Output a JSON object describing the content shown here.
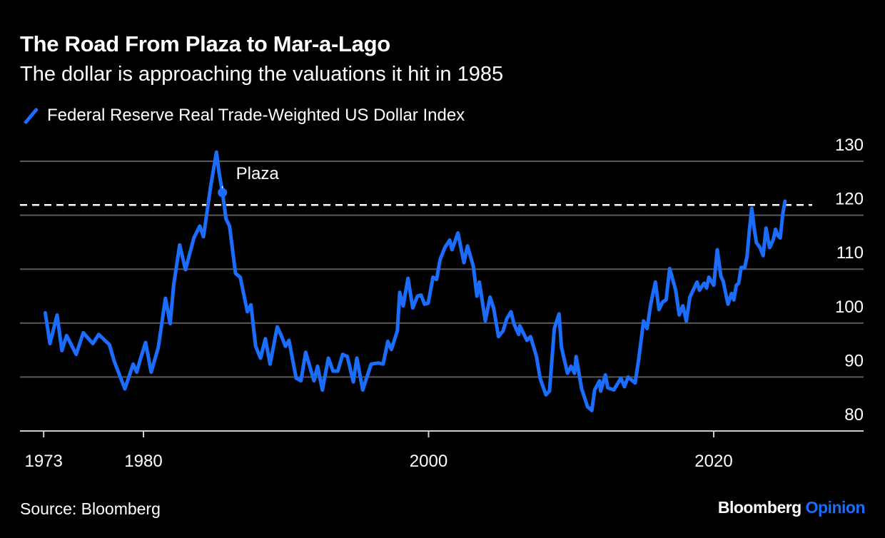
{
  "title": "The Road From Plaza to Mar-a-Lago",
  "subtitle": "The dollar is approaching the valuations it hit in 1985",
  "source": "Source: Bloomberg",
  "logo": {
    "brand": "Bloomberg",
    "section": "Opinion"
  },
  "colors": {
    "series": "#1a6dff",
    "background": "#000000",
    "grid": "#5a5a5a",
    "reference_line": "#ffffff",
    "logo_accent": "#1a6dff"
  },
  "legend_icon": "diagonal-line-swatch",
  "chart_data": {
    "type": "line",
    "title": "The Road From Plaza to Mar-a-Lago",
    "subtitle": "The dollar is approaching the valuations it hit in 1985",
    "xlabel": "",
    "ylabel": "",
    "xlim": [
      1973,
      2025
    ],
    "ylim": [
      80,
      130
    ],
    "y_axis_position": "right",
    "grid": true,
    "legend_placement": "top-left",
    "x_ticks": [
      "1973",
      "1980",
      "2000",
      "2020"
    ],
    "y_ticks": [
      "80",
      "90",
      "100",
      "110",
      "120",
      "130"
    ],
    "reference_line": {
      "y": 121.9,
      "style": "dashed"
    },
    "annotation": {
      "label": "Plaza",
      "x": 1985.54,
      "y": 124.2
    },
    "series": [
      {
        "name": "Federal Reserve Real Trade-Weighted US Dollar Index",
        "points": [
          [
            1973.11,
            101.9
          ],
          [
            1973.44,
            96.2
          ],
          [
            1973.94,
            101.5
          ],
          [
            1974.28,
            94.9
          ],
          [
            1974.61,
            97.7
          ],
          [
            1975.28,
            94.2
          ],
          [
            1975.78,
            98.2
          ],
          [
            1976.45,
            96.2
          ],
          [
            1976.86,
            97.9
          ],
          [
            1977.61,
            96.0
          ],
          [
            1977.95,
            92.9
          ],
          [
            1978.7,
            87.8
          ],
          [
            1979.28,
            92.4
          ],
          [
            1979.53,
            90.9
          ],
          [
            1979.78,
            93.3
          ],
          [
            1980.15,
            96.4
          ],
          [
            1980.54,
            90.9
          ],
          [
            1981.04,
            95.5
          ],
          [
            1981.54,
            104.6
          ],
          [
            1981.87,
            99.9
          ],
          [
            1982.12,
            107.0
          ],
          [
            1982.54,
            114.5
          ],
          [
            1982.95,
            109.9
          ],
          [
            1983.54,
            115.8
          ],
          [
            1983.95,
            118.0
          ],
          [
            1984.21,
            116.0
          ],
          [
            1984.71,
            125.3
          ],
          [
            1985.12,
            131.7
          ],
          [
            1985.29,
            128.1
          ],
          [
            1985.54,
            124.2
          ],
          [
            1985.79,
            119.3
          ],
          [
            1986.04,
            118.0
          ],
          [
            1986.46,
            109.2
          ],
          [
            1986.79,
            108.5
          ],
          [
            1987.29,
            102.1
          ],
          [
            1987.54,
            103.4
          ],
          [
            1987.87,
            95.7
          ],
          [
            1988.21,
            93.5
          ],
          [
            1988.55,
            97.1
          ],
          [
            1988.88,
            92.4
          ],
          [
            1989.38,
            99.3
          ],
          [
            1989.63,
            97.9
          ],
          [
            1989.96,
            95.7
          ],
          [
            1990.21,
            96.8
          ],
          [
            1990.71,
            89.8
          ],
          [
            1991.05,
            89.3
          ],
          [
            1991.38,
            94.6
          ],
          [
            1991.96,
            89.3
          ],
          [
            1992.21,
            92.0
          ],
          [
            1992.55,
            87.6
          ],
          [
            1992.97,
            93.5
          ],
          [
            1993.3,
            91.1
          ],
          [
            1993.63,
            91.1
          ],
          [
            1993.97,
            94.2
          ],
          [
            1994.3,
            93.8
          ],
          [
            1994.72,
            89.1
          ],
          [
            1994.97,
            93.5
          ],
          [
            1995.38,
            87.6
          ],
          [
            1995.97,
            92.4
          ],
          [
            1996.47,
            92.6
          ],
          [
            1996.81,
            92.4
          ],
          [
            1997.14,
            96.6
          ],
          [
            1997.39,
            95.1
          ],
          [
            1997.81,
            98.6
          ],
          [
            1997.97,
            105.7
          ],
          [
            1998.22,
            103.2
          ],
          [
            1998.56,
            108.3
          ],
          [
            1998.89,
            102.8
          ],
          [
            1999.22,
            105.0
          ],
          [
            1999.47,
            105.2
          ],
          [
            1999.72,
            103.5
          ],
          [
            1999.97,
            103.7
          ],
          [
            2000.31,
            108.5
          ],
          [
            2000.56,
            108.1
          ],
          [
            2000.81,
            111.8
          ],
          [
            2001.14,
            114.0
          ],
          [
            2001.48,
            115.4
          ],
          [
            2001.64,
            113.6
          ],
          [
            2002.06,
            116.7
          ],
          [
            2002.48,
            111.2
          ],
          [
            2002.73,
            114.3
          ],
          [
            2003.14,
            110.5
          ],
          [
            2003.39,
            105.0
          ],
          [
            2003.56,
            107.6
          ],
          [
            2003.98,
            100.4
          ],
          [
            2004.31,
            104.8
          ],
          [
            2004.56,
            102.8
          ],
          [
            2004.9,
            97.5
          ],
          [
            2005.23,
            98.6
          ],
          [
            2005.48,
            100.8
          ],
          [
            2005.78,
            102.1
          ],
          [
            2005.98,
            99.9
          ],
          [
            2006.32,
            97.9
          ],
          [
            2006.4,
            99.5
          ],
          [
            2006.9,
            96.8
          ],
          [
            2007.15,
            97.5
          ],
          [
            2007.57,
            93.8
          ],
          [
            2007.82,
            89.8
          ],
          [
            2008.23,
            86.7
          ],
          [
            2008.48,
            87.4
          ],
          [
            2008.82,
            99.0
          ],
          [
            2009.15,
            101.7
          ],
          [
            2009.32,
            95.5
          ],
          [
            2009.74,
            90.7
          ],
          [
            2009.99,
            92.0
          ],
          [
            2010.24,
            90.7
          ],
          [
            2010.35,
            93.8
          ],
          [
            2010.74,
            87.8
          ],
          [
            2011.15,
            84.5
          ],
          [
            2011.45,
            83.8
          ],
          [
            2011.65,
            87.6
          ],
          [
            2011.99,
            89.3
          ],
          [
            2012.07,
            87.4
          ],
          [
            2012.4,
            90.4
          ],
          [
            2012.57,
            88.0
          ],
          [
            2012.99,
            87.6
          ],
          [
            2013.49,
            89.8
          ],
          [
            2013.74,
            88.2
          ],
          [
            2013.99,
            90.0
          ],
          [
            2014.49,
            88.9
          ],
          [
            2014.74,
            93.3
          ],
          [
            2015.08,
            100.4
          ],
          [
            2015.33,
            99.0
          ],
          [
            2015.58,
            103.5
          ],
          [
            2015.91,
            107.6
          ],
          [
            2016.16,
            102.5
          ],
          [
            2016.41,
            103.9
          ],
          [
            2016.66,
            104.3
          ],
          [
            2016.91,
            110.1
          ],
          [
            2017.33,
            106.1
          ],
          [
            2017.58,
            101.5
          ],
          [
            2017.83,
            103.2
          ],
          [
            2018.08,
            100.4
          ],
          [
            2018.33,
            104.8
          ],
          [
            2018.83,
            107.6
          ],
          [
            2019.0,
            106.1
          ],
          [
            2019.33,
            107.4
          ],
          [
            2019.5,
            106.5
          ],
          [
            2019.66,
            108.5
          ],
          [
            2020.0,
            107.0
          ],
          [
            2020.25,
            113.6
          ],
          [
            2020.5,
            108.7
          ],
          [
            2020.66,
            107.8
          ],
          [
            2021.0,
            103.5
          ],
          [
            2021.25,
            105.5
          ],
          [
            2021.41,
            104.3
          ],
          [
            2021.58,
            107.0
          ],
          [
            2021.75,
            107.4
          ],
          [
            2021.92,
            110.3
          ],
          [
            2022.17,
            110.3
          ],
          [
            2022.34,
            112.3
          ],
          [
            2022.5,
            117.1
          ],
          [
            2022.67,
            121.3
          ],
          [
            2022.84,
            117.6
          ],
          [
            2023.0,
            114.9
          ],
          [
            2023.25,
            114.0
          ],
          [
            2023.47,
            112.5
          ],
          [
            2023.67,
            117.6
          ],
          [
            2023.92,
            114.0
          ],
          [
            2024.17,
            115.4
          ],
          [
            2024.34,
            117.4
          ],
          [
            2024.5,
            116.2
          ],
          [
            2024.67,
            115.8
          ],
          [
            2024.84,
            120.2
          ],
          [
            2025.0,
            122.6
          ]
        ]
      }
    ]
  }
}
